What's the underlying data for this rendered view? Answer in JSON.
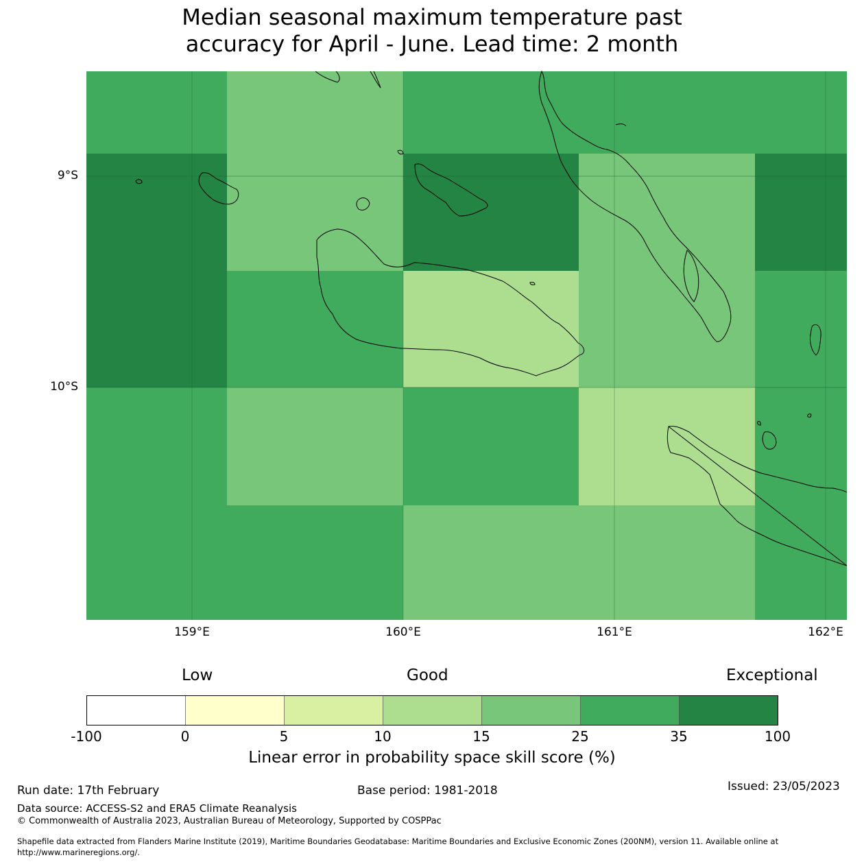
{
  "title_lines": [
    "Median seasonal maximum temperature past",
    "accuracy for April - June. Lead time: 2 month"
  ],
  "map": {
    "lat_labels": [
      "9°S",
      "10°S"
    ],
    "lon_labels": [
      "159°E",
      "160°E",
      "161°E",
      "162°E"
    ],
    "grid_cells": [
      {
        "row": 0,
        "col": 0,
        "category": 5
      },
      {
        "row": 0,
        "col": 1,
        "category": 4
      },
      {
        "row": 0,
        "col": 2,
        "category": 5
      },
      {
        "row": 0,
        "col": 3,
        "category": 5
      },
      {
        "row": 0,
        "col": 4,
        "category": 5
      },
      {
        "row": 1,
        "col": 0,
        "category": 6
      },
      {
        "row": 1,
        "col": 1,
        "category": 4
      },
      {
        "row": 1,
        "col": 2,
        "category": 6
      },
      {
        "row": 1,
        "col": 3,
        "category": 4
      },
      {
        "row": 1,
        "col": 4,
        "category": 6
      },
      {
        "row": 2,
        "col": 0,
        "category": 6
      },
      {
        "row": 2,
        "col": 1,
        "category": 5
      },
      {
        "row": 2,
        "col": 2,
        "category": 3
      },
      {
        "row": 2,
        "col": 3,
        "category": 4
      },
      {
        "row": 2,
        "col": 4,
        "category": 5
      },
      {
        "row": 3,
        "col": 0,
        "category": 5
      },
      {
        "row": 3,
        "col": 1,
        "category": 4
      },
      {
        "row": 3,
        "col": 2,
        "category": 5
      },
      {
        "row": 3,
        "col": 3,
        "category": 3
      },
      {
        "row": 3,
        "col": 4,
        "category": 5
      },
      {
        "row": 4,
        "col": 0,
        "category": 5
      },
      {
        "row": 4,
        "col": 1,
        "category": 5
      },
      {
        "row": 4,
        "col": 2,
        "category": 4
      },
      {
        "row": 4,
        "col": 3,
        "category": 4
      },
      {
        "row": 4,
        "col": 4,
        "category": 5
      }
    ]
  },
  "legend": {
    "category_labels": [
      "Low",
      "Good",
      "Exceptional"
    ],
    "colors": [
      "#ffffff",
      "#ffffcc",
      "#d9f0a3",
      "#addd8e",
      "#78c679",
      "#41ab5d",
      "#238443"
    ],
    "ticks": [
      "-100",
      "0",
      "5",
      "10",
      "15",
      "25",
      "35",
      "100"
    ],
    "title": "Linear error in probability space skill score (%)"
  },
  "footer": {
    "run_date": "Run date: 17th February",
    "base_period": "Base period: 1981-2018",
    "issued": "Issued: 23/05/2023",
    "data_source": "Data source: ACCESS-S2 and ERA5 Climate Reanalysis",
    "copyright": "© Commonwealth of Australia 2023, Australian Bureau of Meteorology, Supported by COSPPac",
    "shapefile_line1": "Shapefile data extracted from Flanders Marine Institute (2019), Maritime Boundaries Geodatabase: Maritime Boundaries and Exclusive Economic Zones (200NM), version 11. Available online at",
    "shapefile_line2": "http://www.marineregions.org/."
  }
}
